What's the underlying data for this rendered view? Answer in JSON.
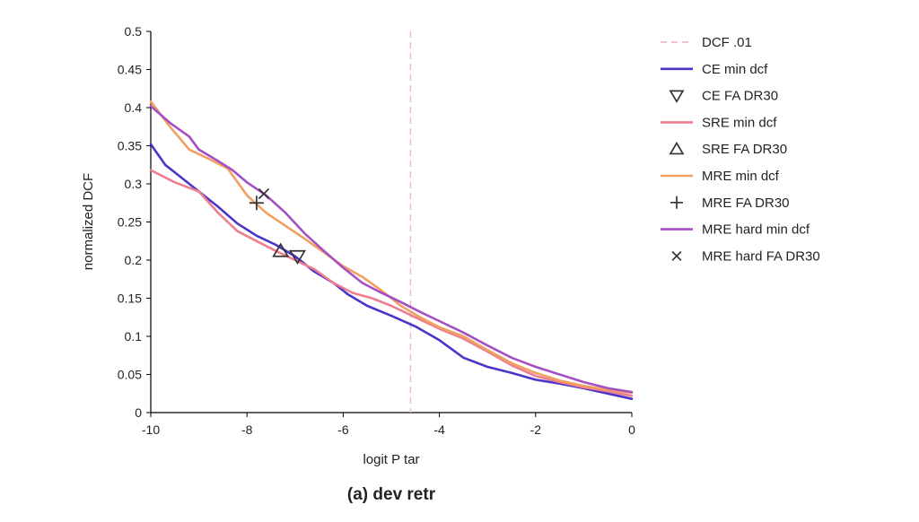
{
  "chart_data": {
    "type": "line",
    "caption": "(a) dev retr",
    "xlabel": "logit P tar",
    "ylabel": "normalized DCF",
    "xlim": [
      -10,
      0
    ],
    "ylim": [
      0,
      0.5
    ],
    "xticks": [
      -10,
      -8,
      -6,
      -4,
      -2,
      0
    ],
    "xtick_labels": [
      "-10",
      "-8",
      "-6",
      "-4",
      "-2",
      "0"
    ],
    "yticks": [
      0,
      0.05,
      0.1,
      0.15,
      0.2,
      0.25,
      0.3,
      0.35,
      0.4,
      0.45,
      0.5
    ],
    "ytick_labels": [
      "0",
      "0.05",
      "0.1",
      "0.15",
      "0.2",
      "0.25",
      "0.3",
      "0.35",
      "0.4",
      "0.45",
      "0.5"
    ],
    "grid": false,
    "legend_position": "right",
    "vline": {
      "name": "DCF .01",
      "x": -4.6,
      "color": "#f2b8c6"
    },
    "series": [
      {
        "name": "CE min dcf",
        "color": "#4a35c9",
        "x": [
          -10,
          -9.7,
          -9.4,
          -9,
          -8.6,
          -8.2,
          -7.8,
          -7.4,
          -7,
          -6.6,
          -6.2,
          -5.9,
          -5.5,
          -5,
          -4.5,
          -4,
          -3.5,
          -3,
          -2.5,
          -2,
          -1.5,
          -1,
          -0.5,
          0
        ],
        "y": [
          0.352,
          0.325,
          0.31,
          0.29,
          0.27,
          0.248,
          0.232,
          0.22,
          0.205,
          0.185,
          0.17,
          0.155,
          0.14,
          0.127,
          0.113,
          0.095,
          0.072,
          0.06,
          0.052,
          0.043,
          0.038,
          0.032,
          0.025,
          0.018
        ]
      },
      {
        "name": "SRE min dcf",
        "color": "#ef7f8e",
        "x": [
          -10,
          -9.5,
          -9,
          -8.6,
          -8.2,
          -7.8,
          -7.4,
          -7,
          -6.6,
          -6.2,
          -5.8,
          -5.4,
          -5,
          -4.5,
          -4,
          -3.5,
          -3,
          -2.5,
          -2,
          -1.5,
          -1,
          -0.5,
          0
        ],
        "y": [
          0.318,
          0.302,
          0.29,
          0.262,
          0.238,
          0.225,
          0.212,
          0.2,
          0.188,
          0.17,
          0.157,
          0.15,
          0.14,
          0.125,
          0.11,
          0.097,
          0.08,
          0.062,
          0.048,
          0.04,
          0.033,
          0.028,
          0.022
        ]
      },
      {
        "name": "MRE min dcf",
        "color": "#f0a060",
        "x": [
          -10,
          -9.6,
          -9.2,
          -8.8,
          -8.4,
          -8,
          -7.6,
          -7.2,
          -6.8,
          -6.4,
          -6,
          -5.6,
          -5.2,
          -4.8,
          -4.4,
          -4,
          -3.5,
          -3,
          -2.5,
          -2,
          -1.5,
          -1,
          -0.5,
          0
        ],
        "y": [
          0.408,
          0.375,
          0.345,
          0.333,
          0.32,
          0.285,
          0.262,
          0.245,
          0.228,
          0.21,
          0.192,
          0.178,
          0.16,
          0.14,
          0.125,
          0.112,
          0.1,
          0.082,
          0.065,
          0.052,
          0.042,
          0.035,
          0.03,
          0.026
        ]
      },
      {
        "name": "MRE hard min dcf",
        "color": "#a44fc2",
        "x": [
          -10,
          -9.6,
          -9.2,
          -9,
          -8.6,
          -8.3,
          -8,
          -7.6,
          -7.2,
          -6.8,
          -6.4,
          -6,
          -5.6,
          -5.2,
          -4.8,
          -4.4,
          -4,
          -3.5,
          -3,
          -2.5,
          -2,
          -1.5,
          -1,
          -0.5,
          0
        ],
        "y": [
          0.402,
          0.38,
          0.362,
          0.345,
          0.33,
          0.318,
          0.302,
          0.285,
          0.262,
          0.235,
          0.212,
          0.19,
          0.17,
          0.157,
          0.145,
          0.132,
          0.12,
          0.105,
          0.088,
          0.072,
          0.06,
          0.05,
          0.04,
          0.032,
          0.027
        ]
      }
    ],
    "markers": [
      {
        "name": "CE FA DR30",
        "symbol": "triangle-down",
        "x": -6.95,
        "y": 0.205
      },
      {
        "name": "SRE FA DR30",
        "symbol": "triangle-up",
        "x": -7.3,
        "y": 0.212
      },
      {
        "name": "MRE FA DR30",
        "symbol": "plus",
        "x": -7.8,
        "y": 0.275
      },
      {
        "name": "MRE hard FA DR30",
        "symbol": "cross",
        "x": -7.65,
        "y": 0.287
      }
    ],
    "legend": [
      {
        "label": "DCF .01",
        "kind": "dashed",
        "color": "#f2b8c6"
      },
      {
        "label": "CE min dcf",
        "kind": "line",
        "color": "#4a35c9"
      },
      {
        "label": "CE FA DR30",
        "kind": "triangle-down",
        "color": "#333333"
      },
      {
        "label": "SRE min dcf",
        "kind": "line",
        "color": "#ef7f8e"
      },
      {
        "label": "SRE FA DR30",
        "kind": "triangle-up",
        "color": "#333333"
      },
      {
        "label": "MRE min dcf",
        "kind": "line",
        "color": "#f0a060"
      },
      {
        "label": "MRE FA DR30",
        "kind": "plus",
        "color": "#333333"
      },
      {
        "label": "MRE hard min dcf",
        "kind": "line",
        "color": "#a44fc2"
      },
      {
        "label": "MRE hard FA DR30",
        "kind": "cross",
        "color": "#333333"
      }
    ]
  }
}
